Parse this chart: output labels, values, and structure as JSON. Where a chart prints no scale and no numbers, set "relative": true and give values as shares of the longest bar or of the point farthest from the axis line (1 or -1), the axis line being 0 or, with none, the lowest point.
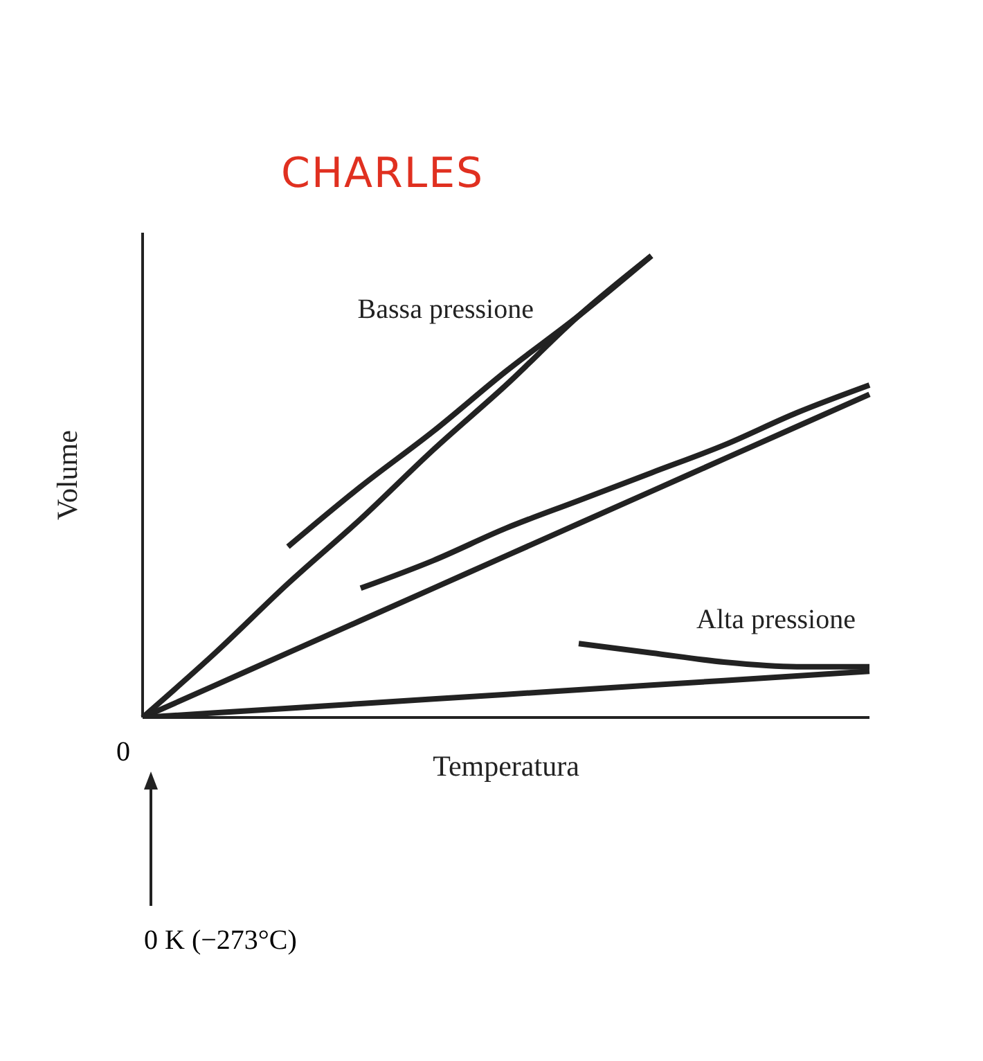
{
  "chart_data": {
    "type": "line",
    "title": "CHARLES",
    "xlabel": "Temperatura",
    "ylabel": "Volume",
    "relative": true,
    "grid": false,
    "legend": false,
    "marker": "none",
    "line_style": "solid",
    "categories": [
      null,
      null,
      null,
      null,
      null,
      null,
      null,
      null,
      null,
      null,
      null
    ],
    "annotations": [
      "0",
      "0 K (−273°C)"
    ],
    "series": [
      {
        "name": "Bassa pressione",
        "color": "#222222",
        "values": [
          0,
          0.14,
          0.29,
          0.43,
          0.58,
          0.72,
          0.87,
          1.0,
          null,
          null,
          null
        ]
      },
      {
        "color": "#222222",
        "values": [
          null,
          null,
          0.37,
          0.5,
          0.62,
          0.75,
          0.87,
          1.0,
          null,
          null,
          null
        ]
      },
      {
        "color": "#222222",
        "values": [
          0,
          0.07,
          0.14,
          0.21,
          0.28,
          0.35,
          0.42,
          0.49,
          0.56,
          0.63,
          0.7
        ]
      },
      {
        "color": "#222222",
        "values": [
          null,
          null,
          null,
          0.28,
          0.34,
          0.41,
          0.47,
          0.53,
          0.59,
          0.66,
          0.72
        ]
      },
      {
        "color": "#222222",
        "values": [
          0,
          0.01,
          0.02,
          0.03,
          0.04,
          0.05,
          0.06,
          0.07,
          0.08,
          0.09,
          0.1
        ]
      },
      {
        "name": "Alta pressione",
        "color": "#222222",
        "values": [
          null,
          null,
          null,
          null,
          null,
          null,
          0.16,
          0.14,
          0.12,
          0.11,
          0.11
        ]
      }
    ]
  }
}
